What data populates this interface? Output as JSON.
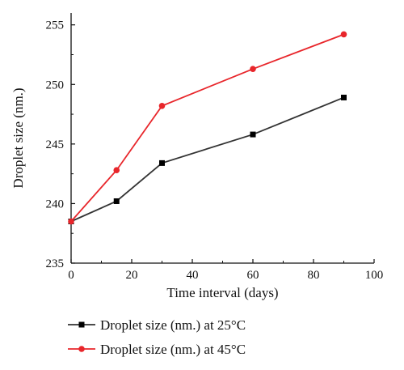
{
  "chart_data": {
    "type": "line",
    "xlabel": "Time interval (days)",
    "ylabel": "Droplet size (nm.)",
    "xlim": [
      0,
      100
    ],
    "ylim": [
      235,
      256
    ],
    "xticks": [
      0,
      20,
      40,
      60,
      80,
      100
    ],
    "yticks": [
      235,
      240,
      245,
      250,
      255
    ],
    "grid": false,
    "legend_position": "bottom",
    "series": [
      {
        "name": "Droplet size (nm.) at 25°C",
        "color": "#333333",
        "marker": "square",
        "x": [
          0,
          15,
          30,
          60,
          90
        ],
        "y": [
          238.5,
          240.2,
          243.4,
          245.8,
          248.9
        ]
      },
      {
        "name": "Droplet size (nm.) at 45°C",
        "color": "#e8262b",
        "marker": "circle",
        "x": [
          0,
          15,
          30,
          60,
          90
        ],
        "y": [
          238.5,
          242.8,
          248.2,
          251.3,
          254.2
        ]
      }
    ]
  }
}
